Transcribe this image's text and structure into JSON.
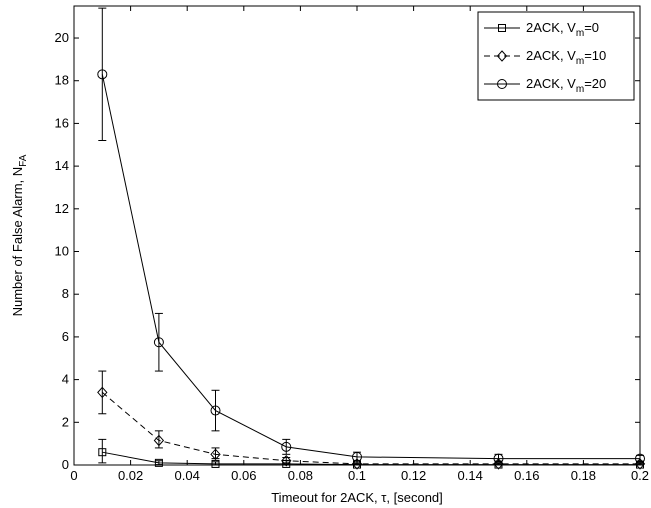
{
  "chart_data": {
    "type": "line",
    "title": "",
    "xlabel": "Timeout for 2ACK, τ, [second]",
    "ylabel": "Number of False Alarm, N",
    "ylabel_sub": "FA",
    "xlim": [
      0,
      0.2
    ],
    "ylim": [
      0,
      21.5
    ],
    "x_ticks": [
      0,
      0.02,
      0.04,
      0.06,
      0.08,
      0.1,
      0.12,
      0.14,
      0.16,
      0.18,
      0.2
    ],
    "x_tick_labels": [
      "0",
      "0.02",
      "0.04",
      "0.06",
      "0.08",
      "0.1",
      "0.12",
      "0.14",
      "0.16",
      "0.18",
      "0.2"
    ],
    "y_ticks": [
      0,
      2,
      4,
      6,
      8,
      10,
      12,
      14,
      16,
      18,
      20
    ],
    "y_tick_labels": [
      "0",
      "2",
      "4",
      "6",
      "8",
      "10",
      "12",
      "14",
      "16",
      "18",
      "20"
    ],
    "grid": false,
    "legend_position": "top-right",
    "x": [
      0.01,
      0.03,
      0.05,
      0.075,
      0.1,
      0.15,
      0.2
    ],
    "series": [
      {
        "name": "2ACK, V",
        "name_sub": "m",
        "name_suffix": "=0",
        "marker": "square",
        "line_style": "solid",
        "values": [
          0.6,
          0.1,
          0.05,
          0.05,
          0.02,
          0.02,
          0.02
        ],
        "error_low": [
          0.1,
          0.02,
          0.0,
          0.0,
          0.0,
          0.0,
          0.0
        ],
        "error_high": [
          1.2,
          0.2,
          0.15,
          0.1,
          0.05,
          0.05,
          0.05
        ]
      },
      {
        "name": "2ACK, V",
        "name_sub": "m",
        "name_suffix": "=10",
        "marker": "diamond",
        "line_style": "dashed",
        "values": [
          3.4,
          1.15,
          0.5,
          0.2,
          0.05,
          0.05,
          0.05
        ],
        "error_low": [
          2.4,
          0.8,
          0.3,
          0.05,
          0.0,
          0.0,
          0.0
        ],
        "error_high": [
          4.4,
          1.6,
          0.8,
          0.35,
          0.1,
          0.1,
          0.1
        ]
      },
      {
        "name": "2ACK, V",
        "name_sub": "m",
        "name_suffix": "=20",
        "marker": "circle",
        "line_style": "solid",
        "values": [
          18.3,
          5.75,
          2.55,
          0.85,
          0.38,
          0.3,
          0.3
        ],
        "error_low": [
          15.2,
          4.4,
          1.6,
          0.5,
          0.2,
          0.15,
          0.15
        ],
        "error_high": [
          21.4,
          7.1,
          3.5,
          1.2,
          0.6,
          0.5,
          0.45
        ]
      }
    ]
  }
}
